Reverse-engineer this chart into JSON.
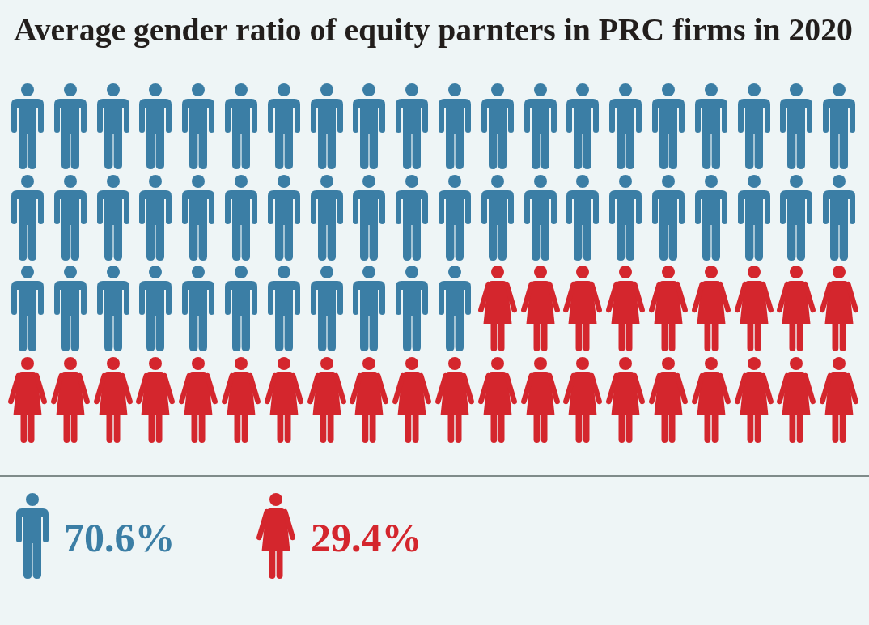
{
  "chart_data": {
    "type": "other",
    "title": "Average gender ratio of equity parnters in PRC firms in 2020",
    "categories": [
      null,
      null
    ],
    "values": [
      70.6,
      29.4
    ],
    "value_labels": [
      "70.6%",
      "29.4%"
    ],
    "colors": [
      "#3b7ea5",
      "#d4262d"
    ]
  }
}
